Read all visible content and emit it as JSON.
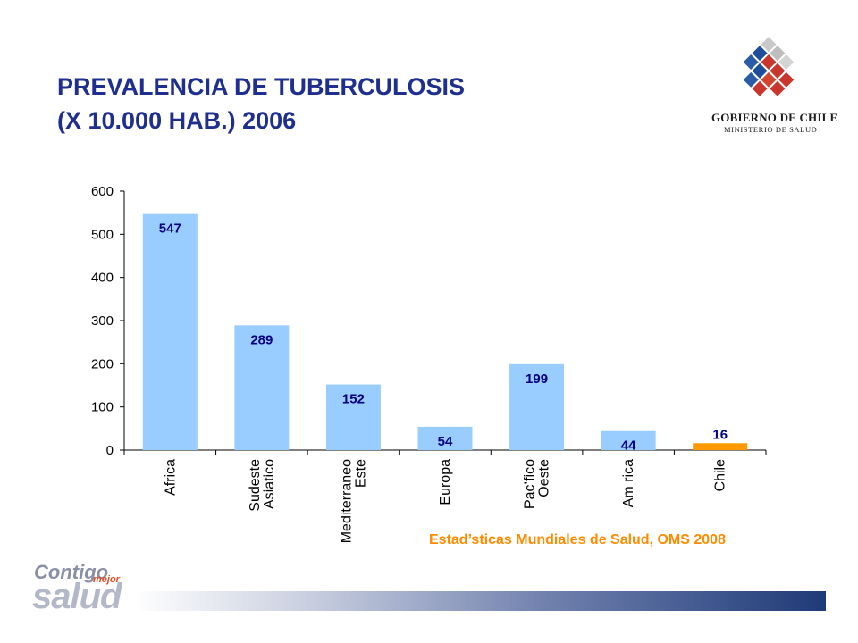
{
  "title": {
    "line1": "PREVALENCIA DE TUBERCULOSIS",
    "line2": "(X 10.000 HAB.) 2006"
  },
  "logo": {
    "line1": "GOBIERNO DE CHILE",
    "line2": "MINISTERIO DE SALUD"
  },
  "source": "Estad’sticas Mundiales de Salud, OMS 2008",
  "branding": {
    "contigo": "Contigo",
    "mejor": "mejor",
    "salud": "salud"
  },
  "colors": {
    "title": "#1f2f8f",
    "bar_default": "#99ccff",
    "bar_highlight": "#ff9900",
    "data_label": "#000080",
    "source": "#ff8c00"
  },
  "chart_data": {
    "type": "bar",
    "categories": [
      [
        "Africa"
      ],
      [
        "Sudeste",
        "Asiatico"
      ],
      [
        "Mediterraneo",
        "Este"
      ],
      [
        "Europa"
      ],
      [
        "Pac’fico",
        "Oeste"
      ],
      [
        "Am   rica"
      ],
      [
        "Chile"
      ]
    ],
    "values": [
      547,
      289,
      152,
      54,
      199,
      44,
      16
    ],
    "data_labels": [
      "547",
      "289",
      "152",
      "54",
      "199",
      "44",
      "16"
    ],
    "highlight_index": 6,
    "ylim": [
      0,
      600
    ],
    "yticks": [
      0,
      100,
      200,
      300,
      400,
      500,
      600
    ],
    "grid": false,
    "legend": "none"
  }
}
